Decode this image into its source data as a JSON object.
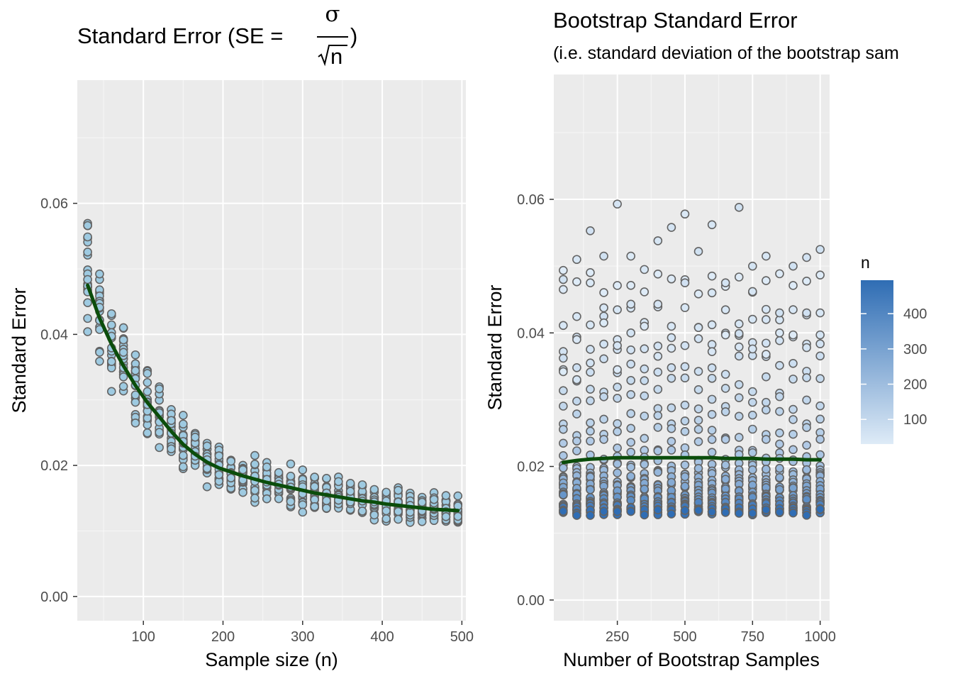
{
  "chart_data": [
    {
      "type": "scatter",
      "title": {
        "prefix": "Standard Error (SE = ",
        "numerator": "σ",
        "denominator": "n",
        "suffix": " )"
      },
      "xlabel": "Sample size (n)",
      "ylabel": "Standard Error",
      "xlim": [
        17,
        505
      ],
      "ylim": [
        -0.0037,
        0.0788
      ],
      "xticks": [
        "100",
        "200",
        "300",
        "400",
        "500"
      ],
      "yticks": [
        "0.00",
        "0.02",
        "0.04",
        "0.06"
      ],
      "grid": true,
      "point_fill": "#9ecae1",
      "point_stroke": "#636363",
      "sample_sizes": [
        30,
        45,
        60,
        75,
        90,
        105,
        120,
        135,
        150,
        165,
        180,
        195,
        210,
        225,
        240,
        255,
        270,
        285,
        300,
        315,
        330,
        345,
        360,
        375,
        390,
        405,
        420,
        435,
        450,
        465,
        480,
        495
      ],
      "points_per_sample_size": 20,
      "smooth": {
        "color": "#0b4d0b",
        "x": [
          30,
          45,
          60,
          75,
          90,
          105,
          120,
          135,
          150,
          165,
          180,
          195,
          210,
          225,
          240,
          255,
          270,
          285,
          300,
          315,
          330,
          345,
          360,
          375,
          390,
          405,
          420,
          435,
          450,
          465,
          480,
          495
        ],
        "y": [
          0.0475,
          0.0425,
          0.0385,
          0.0352,
          0.0322,
          0.0296,
          0.0274,
          0.0252,
          0.0232,
          0.0217,
          0.0205,
          0.0196,
          0.019,
          0.0184,
          0.0179,
          0.0174,
          0.017,
          0.0166,
          0.0162,
          0.0158,
          0.0155,
          0.0152,
          0.0149,
          0.0146,
          0.0144,
          0.0141,
          0.0139,
          0.0137,
          0.0135,
          0.0133,
          0.0132,
          0.0131
        ]
      }
    },
    {
      "type": "scatter",
      "title": "Bootstrap Standard Error",
      "subtitle": "(i.e. standard deviation of the bootstrap sam",
      "xlabel": "Number of Bootstrap Samples",
      "ylabel": "Standard Error",
      "xlim": [
        15,
        1035
      ],
      "ylim": [
        -0.0031,
        0.0787
      ],
      "xticks": [
        "250",
        "500",
        "750",
        "1000"
      ],
      "yticks": [
        "0.00",
        "0.02",
        "0.04",
        "0.06"
      ],
      "grid": true,
      "point_stroke": "#636363",
      "bootstrap_counts": [
        50,
        100,
        150,
        200,
        250,
        300,
        350,
        400,
        450,
        500,
        550,
        600,
        650,
        700,
        750,
        800,
        850,
        900,
        950,
        1000
      ],
      "highlight_points": [
        {
          "x": 50,
          "y": 0.048
        },
        {
          "x": 50,
          "y": 0.0465
        },
        {
          "x": 50,
          "y": 0.0345
        },
        {
          "x": 50,
          "y": 0.0342
        },
        {
          "x": 100,
          "y": 0.051
        },
        {
          "x": 100,
          "y": 0.039
        },
        {
          "x": 100,
          "y": 0.033
        },
        {
          "x": 150,
          "y": 0.0553
        },
        {
          "x": 150,
          "y": 0.0475
        },
        {
          "x": 150,
          "y": 0.0355
        },
        {
          "x": 200,
          "y": 0.0515
        },
        {
          "x": 200,
          "y": 0.0425
        },
        {
          "x": 200,
          "y": 0.0415
        },
        {
          "x": 250,
          "y": 0.0593
        },
        {
          "x": 250,
          "y": 0.039
        },
        {
          "x": 250,
          "y": 0.0381
        },
        {
          "x": 250,
          "y": 0.0345
        },
        {
          "x": 300,
          "y": 0.0515
        },
        {
          "x": 300,
          "y": 0.0443
        },
        {
          "x": 300,
          "y": 0.04
        },
        {
          "x": 350,
          "y": 0.0495
        },
        {
          "x": 350,
          "y": 0.041
        },
        {
          "x": 400,
          "y": 0.0538
        },
        {
          "x": 400,
          "y": 0.0443
        },
        {
          "x": 400,
          "y": 0.0365
        },
        {
          "x": 450,
          "y": 0.0558
        },
        {
          "x": 450,
          "y": 0.0377
        },
        {
          "x": 500,
          "y": 0.0578
        },
        {
          "x": 500,
          "y": 0.0475
        },
        {
          "x": 550,
          "y": 0.0522
        },
        {
          "x": 550,
          "y": 0.0408
        },
        {
          "x": 600,
          "y": 0.0562
        },
        {
          "x": 600,
          "y": 0.046
        },
        {
          "x": 600,
          "y": 0.0372
        },
        {
          "x": 650,
          "y": 0.0475
        },
        {
          "x": 650,
          "y": 0.0397
        },
        {
          "x": 700,
          "y": 0.0588
        },
        {
          "x": 700,
          "y": 0.0399
        },
        {
          "x": 700,
          "y": 0.0379
        },
        {
          "x": 750,
          "y": 0.05
        },
        {
          "x": 750,
          "y": 0.0462
        },
        {
          "x": 750,
          "y": 0.0376
        },
        {
          "x": 800,
          "y": 0.0515
        },
        {
          "x": 800,
          "y": 0.042
        },
        {
          "x": 800,
          "y": 0.0368
        },
        {
          "x": 850,
          "y": 0.043
        },
        {
          "x": 850,
          "y": 0.04
        },
        {
          "x": 900,
          "y": 0.05
        },
        {
          "x": 900,
          "y": 0.0397
        },
        {
          "x": 950,
          "y": 0.0513
        },
        {
          "x": 950,
          "y": 0.043
        },
        {
          "x": 950,
          "y": 0.0378
        },
        {
          "x": 1000,
          "y": 0.0525
        },
        {
          "x": 1000,
          "y": 0.0397
        }
      ],
      "smooth": {
        "color": "#0b4d0b",
        "x": [
          50,
          100,
          150,
          200,
          250,
          300,
          350,
          400,
          450,
          500,
          550,
          600,
          650,
          700,
          750,
          800,
          850,
          900,
          950,
          1000
        ],
        "y": [
          0.0206,
          0.0209,
          0.0211,
          0.0212,
          0.0213,
          0.0213,
          0.0213,
          0.0213,
          0.0213,
          0.0213,
          0.0213,
          0.0213,
          0.0212,
          0.0212,
          0.0212,
          0.0211,
          0.0211,
          0.0211,
          0.021,
          0.021
        ]
      },
      "legend": {
        "title": "n",
        "labels": [
          "400",
          "300",
          "200",
          "100"
        ],
        "values": [
          400,
          300,
          200,
          100
        ],
        "range": [
          30,
          495
        ],
        "low_color": "#deebf7",
        "high_color": "#2f6db4",
        "placement": "right"
      }
    }
  ]
}
